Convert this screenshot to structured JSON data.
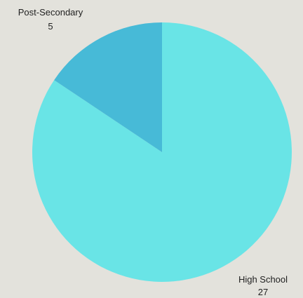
{
  "chart_data": {
    "type": "pie",
    "categories": [
      "High School",
      "Post-Secondary"
    ],
    "values": [
      27,
      5
    ],
    "colors": [
      "#69e4e6",
      "#47bad7"
    ],
    "title": "",
    "legend": "none",
    "slices": [
      {
        "name": "High School",
        "value": 27,
        "value_label": "27",
        "color": "#69e4e6"
      },
      {
        "name": "Post-Secondary",
        "value": 5,
        "value_label": "5",
        "color": "#47bad7"
      }
    ]
  }
}
